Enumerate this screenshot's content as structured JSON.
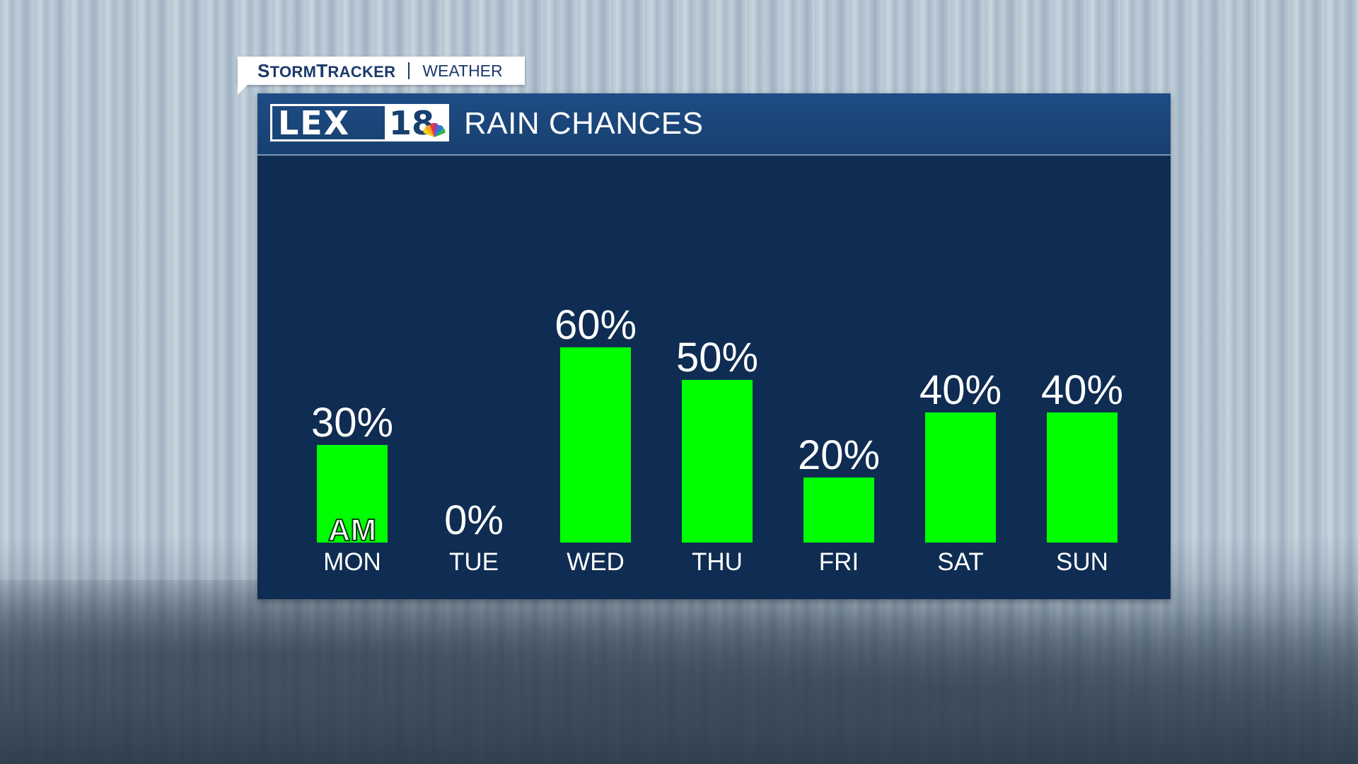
{
  "tag": {
    "brand_prefix_s": "S",
    "brand_torm": "TORM",
    "brand_t": "T",
    "brand_racker": "RACKER",
    "weather": "WEATHER"
  },
  "header": {
    "logo_text": "LEX",
    "logo_num": "18",
    "title": "RAIN CHANCES"
  },
  "colors": {
    "bar": "#00ff00",
    "panel": "#0f2c52",
    "header": "#1b4577",
    "text": "#ffffff"
  },
  "chart_data": {
    "type": "bar",
    "title": "RAIN CHANCES",
    "categories": [
      "MON",
      "TUE",
      "WED",
      "THU",
      "FRI",
      "SAT",
      "SUN"
    ],
    "values": [
      30,
      0,
      60,
      50,
      20,
      40,
      40
    ],
    "value_labels": [
      "30%",
      "0%",
      "60%",
      "50%",
      "20%",
      "40%",
      "40%"
    ],
    "bar_notes": [
      "AM",
      "",
      "",
      "",
      "",
      "",
      ""
    ],
    "ylim": [
      0,
      100
    ],
    "grid": false,
    "legend": "none"
  }
}
